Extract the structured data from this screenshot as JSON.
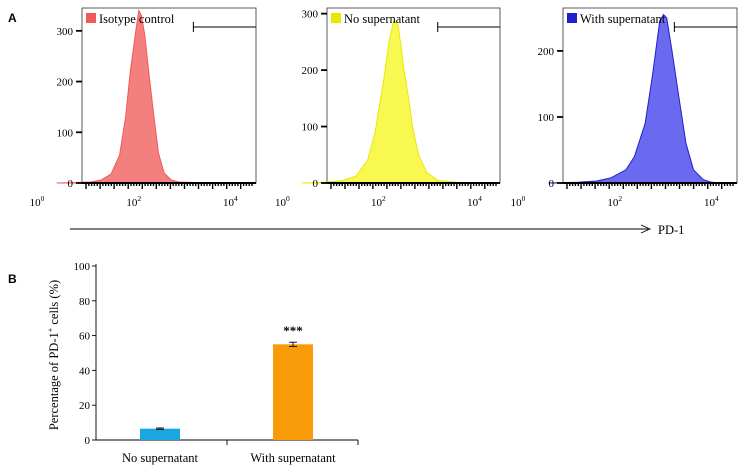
{
  "figure": {
    "panel_a_label": "A",
    "panel_b_label": "B",
    "x_axis_label": "PD-1",
    "x_tick_labels": [
      "10",
      "0",
      "10",
      "2",
      "10",
      "4"
    ]
  },
  "chart_data": [
    {
      "type": "area",
      "panel": "A",
      "legend": "Isotype control",
      "color": "#f05a5a",
      "fill": "#f47f7f",
      "x_scale": "log10",
      "x_ticks": [
        1,
        100,
        10000
      ],
      "ylim": [
        0,
        345
      ],
      "y_ticks": [
        0,
        100,
        200,
        300
      ],
      "gate": "right bracket",
      "curve": [
        [
          3,
          0
        ],
        [
          8,
          1
        ],
        [
          15,
          2
        ],
        [
          25,
          6
        ],
        [
          40,
          18
        ],
        [
          60,
          55
        ],
        [
          80,
          130
        ],
        [
          100,
          220
        ],
        [
          130,
          300
        ],
        [
          150,
          340
        ],
        [
          170,
          330
        ],
        [
          200,
          290
        ],
        [
          240,
          220
        ],
        [
          300,
          140
        ],
        [
          380,
          60
        ],
        [
          500,
          20
        ],
        [
          700,
          6
        ],
        [
          1000,
          2
        ],
        [
          5000,
          0
        ]
      ]
    },
    {
      "type": "area",
      "panel": "A",
      "legend": "No supernatant",
      "color": "#e8e800",
      "fill": "#f8f850",
      "x_scale": "log10",
      "x_ticks": [
        1,
        100,
        10000
      ],
      "ylim": [
        0,
        310
      ],
      "y_ticks": [
        0,
        100,
        200,
        300
      ],
      "gate": "right bracket",
      "curve": [
        [
          3,
          0
        ],
        [
          8,
          1
        ],
        [
          20,
          4
        ],
        [
          40,
          12
        ],
        [
          70,
          40
        ],
        [
          100,
          90
        ],
        [
          150,
          180
        ],
        [
          200,
          255
        ],
        [
          250,
          290
        ],
        [
          300,
          280
        ],
        [
          350,
          240
        ],
        [
          400,
          200
        ],
        [
          500,
          150
        ],
        [
          600,
          100
        ],
        [
          800,
          50
        ],
        [
          1200,
          18
        ],
        [
          2000,
          5
        ],
        [
          5000,
          1
        ],
        [
          15000,
          0
        ]
      ]
    },
    {
      "type": "area",
      "panel": "A",
      "legend": "With supernatant",
      "color": "#2020c8",
      "fill": "#6a6af0",
      "x_scale": "log10",
      "x_ticks": [
        1,
        100,
        10000
      ],
      "ylim": [
        0,
        265
      ],
      "y_ticks": [
        0,
        100,
        200
      ],
      "gate": "right bracket",
      "curve": [
        [
          5,
          0
        ],
        [
          20,
          1
        ],
        [
          50,
          3
        ],
        [
          100,
          8
        ],
        [
          200,
          20
        ],
        [
          300,
          40
        ],
        [
          500,
          90
        ],
        [
          700,
          160
        ],
        [
          900,
          220
        ],
        [
          1000,
          245
        ],
        [
          1200,
          255
        ],
        [
          1400,
          250
        ],
        [
          1800,
          200
        ],
        [
          2500,
          130
        ],
        [
          3500,
          60
        ],
        [
          5000,
          20
        ],
        [
          8000,
          5
        ],
        [
          12000,
          1
        ],
        [
          20000,
          0
        ]
      ]
    },
    {
      "type": "bar",
      "panel": "B",
      "ylabel_parts": [
        "Percentage of PD-1",
        "+",
        " cells (%)"
      ],
      "ylim": [
        0,
        100
      ],
      "y_ticks": [
        0,
        20,
        40,
        60,
        80,
        100
      ],
      "categories": [
        "No supernatant",
        "With supernatant"
      ],
      "values": [
        6.5,
        55
      ],
      "errors": [
        0.4,
        1.2
      ],
      "colors": [
        "#1aa6e2",
        "#f99b09"
      ],
      "annotations": [
        "",
        "***"
      ]
    }
  ]
}
